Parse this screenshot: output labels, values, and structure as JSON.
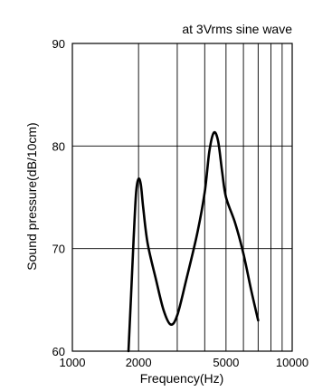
{
  "chart_data": {
    "type": "line",
    "title": "",
    "annotation": "at 3Vrms sine wave",
    "xlabel": "Frequency(Hz)",
    "ylabel": "Sound pressure(dB/10cm)",
    "x_scale": "log",
    "xlim": [
      1000,
      10000
    ],
    "ylim": [
      60,
      90
    ],
    "x_ticks": [
      1000,
      2000,
      5000,
      10000
    ],
    "x_tick_labels": [
      "1000",
      "2000",
      "5000",
      "10000"
    ],
    "x_gridlines": [
      2000,
      3000,
      4000,
      5000,
      6000,
      7000,
      8000,
      9000
    ],
    "y_ticks": [
      60,
      70,
      80,
      90
    ],
    "y_tick_labels": [
      "60",
      "70",
      "80",
      "90"
    ],
    "y_gridlines": [
      70,
      80
    ],
    "grid": true,
    "colors": {
      "line": "#000000",
      "grid": "#000000",
      "background": "#ffffff"
    },
    "series": [
      {
        "values": [
          [
            1800,
            60.0
          ],
          [
            1850,
            65.5
          ],
          [
            1900,
            71.0
          ],
          [
            1950,
            75.5
          ],
          [
            2000,
            76.8
          ],
          [
            2050,
            76.2
          ],
          [
            2100,
            74.0
          ],
          [
            2200,
            70.5
          ],
          [
            2400,
            67.0
          ],
          [
            2600,
            64.0
          ],
          [
            2800,
            62.6
          ],
          [
            3000,
            63.5
          ],
          [
            3300,
            67.0
          ],
          [
            3700,
            71.5
          ],
          [
            4000,
            75.5
          ],
          [
            4200,
            79.5
          ],
          [
            4400,
            81.3
          ],
          [
            4600,
            80.5
          ],
          [
            4800,
            77.5
          ],
          [
            5000,
            75.0
          ],
          [
            5500,
            72.5
          ],
          [
            6000,
            69.5
          ],
          [
            6500,
            66.0
          ],
          [
            7000,
            63.0
          ]
        ]
      }
    ]
  }
}
